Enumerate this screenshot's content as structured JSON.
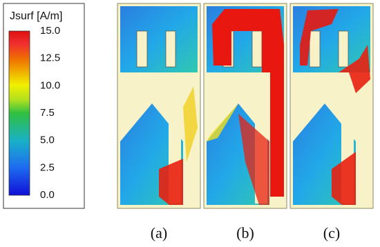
{
  "colorbar": {
    "title": "Jsurf [A/m]",
    "ticks": [
      "15.0",
      "12.5",
      "10.0",
      "7.5",
      "5.0",
      "2.5",
      "0.0"
    ]
  },
  "panels": [
    {
      "label": "(a)"
    },
    {
      "label": "(b)"
    },
    {
      "label": "(c)"
    }
  ]
}
